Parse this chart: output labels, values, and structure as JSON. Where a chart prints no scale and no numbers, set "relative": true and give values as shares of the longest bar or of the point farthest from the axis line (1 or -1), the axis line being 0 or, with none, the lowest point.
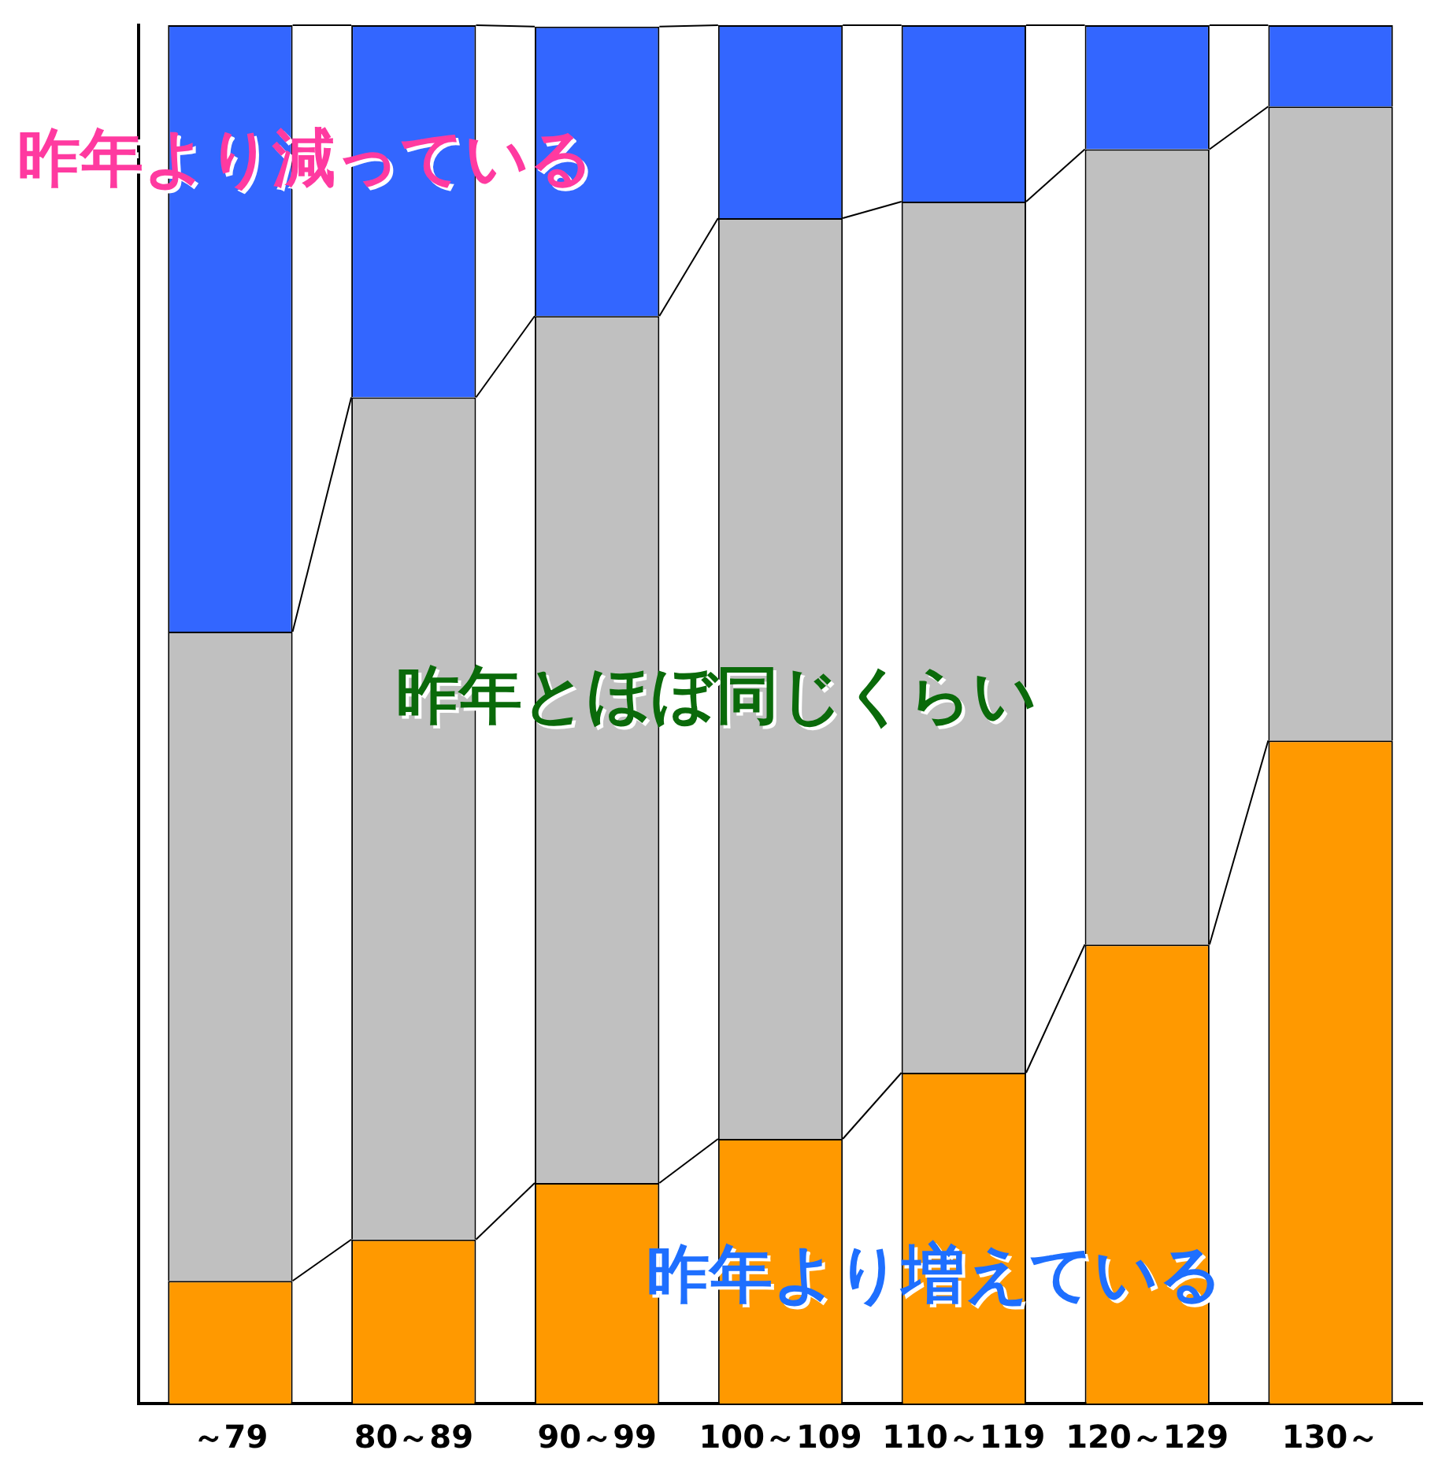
{
  "chart_data": {
    "type": "bar",
    "stacked": true,
    "relative": true,
    "categories": [
      "～79",
      "80～89",
      "90～99",
      "100～109",
      "110～119",
      "120～129",
      "130～"
    ],
    "series": [
      {
        "name": "昨年より増えている",
        "color": "#ff9900",
        "values": [
          0.089,
          0.119,
          0.16,
          0.192,
          0.24,
          0.333,
          0.481
        ]
      },
      {
        "name": "昨年とほぼ同じくらい",
        "color": "#c0c0c0",
        "values": [
          0.471,
          0.611,
          0.629,
          0.668,
          0.632,
          0.577,
          0.46
        ]
      },
      {
        "name": "昨年より減っている",
        "color": "#3366ff",
        "values": [
          0.44,
          0.27,
          0.21,
          0.14,
          0.128,
          0.09,
          0.059
        ]
      }
    ],
    "grid": false,
    "legend": false
  }
}
